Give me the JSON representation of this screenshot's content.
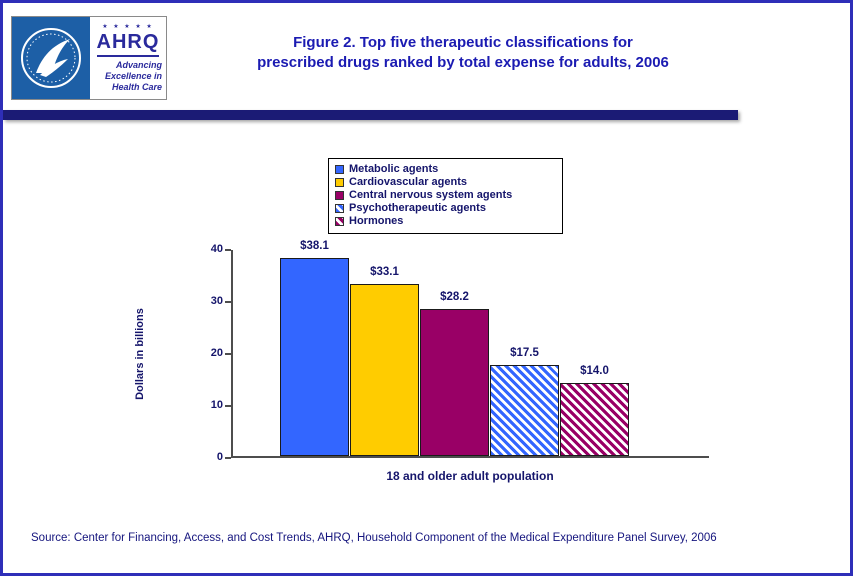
{
  "header": {
    "title_line1": "Figure 2. Top five therapeutic classifications for",
    "title_line2": "prescribed drugs ranked by total expense for adults, 2006"
  },
  "logos": {
    "hhs_icon": "hhs-seal",
    "ahrq_acronym": "AHRQ",
    "ahrq_stars": "★ ★ ★ ★ ★",
    "ahrq_tagline_line1": "Advancing",
    "ahrq_tagline_line2": "Excellence in",
    "ahrq_tagline_line3": "Health Care"
  },
  "footer": {
    "source": "Source: Center for Financing, Access, and Cost Trends, AHRQ, Household Component of the Medical Expenditure Panel Survey, 2006"
  },
  "colors": {
    "blue_bar": "#3366ff",
    "yellow_bar": "#ffcc00",
    "purple_bar": "#990066",
    "navy_text": "#15156b",
    "divider": "#1b1b75",
    "page_border": "#2e2eb8"
  },
  "chart_data": {
    "type": "bar",
    "title": "Figure 2. Top five therapeutic classifications for prescribed drugs ranked by total expense for adults, 2006",
    "categories": [
      "Metabolic agents",
      "Cardiovascular agents",
      "Central nervous system agents",
      "Psychotherapeutic agents",
      "Hormones"
    ],
    "values": [
      38.1,
      33.1,
      28.2,
      17.5,
      14.0
    ],
    "value_labels": [
      "$38.1",
      "$33.1",
      "$28.2",
      "$17.5",
      "$14.0"
    ],
    "xlabel": "18 and older adult population",
    "ylabel": "Dollars in billions",
    "ylim": [
      0,
      40
    ],
    "yticks": [
      0,
      10,
      20,
      30,
      40
    ],
    "grid": false,
    "legend_position": "top",
    "series_styles": [
      {
        "color": "#3366ff",
        "pattern": "solid"
      },
      {
        "color": "#ffcc00",
        "pattern": "solid"
      },
      {
        "color": "#990066",
        "pattern": "solid"
      },
      {
        "color": "#3366ff",
        "pattern": "hatch"
      },
      {
        "color": "#990066",
        "pattern": "hatch"
      }
    ]
  }
}
